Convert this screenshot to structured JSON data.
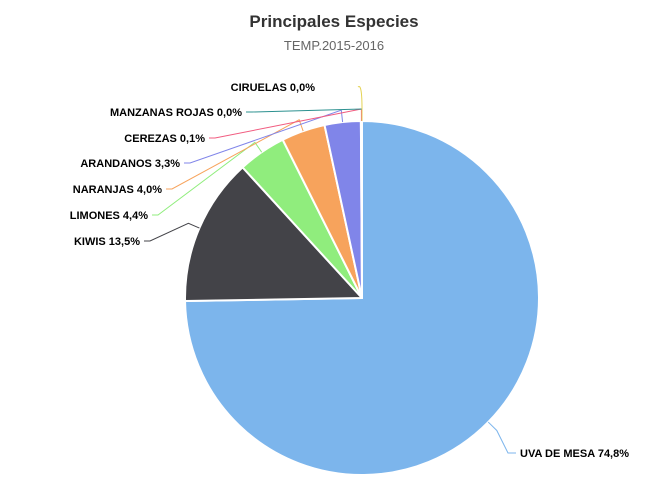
{
  "chart_data": {
    "type": "pie",
    "title": "Principales Especies",
    "subtitle": "TEMP.2015-2016",
    "slices": [
      {
        "label": "UVA DE MESA",
        "value": 74.8,
        "value_text": "74,8%",
        "color": "#7cb5ec"
      },
      {
        "label": "KIWIS",
        "value": 13.5,
        "value_text": "13,5%",
        "color": "#434348"
      },
      {
        "label": "LIMONES",
        "value": 4.4,
        "value_text": "4,4%",
        "color": "#90ed7d"
      },
      {
        "label": "NARANJAS",
        "value": 4.0,
        "value_text": "4,0%",
        "color": "#f7a35c"
      },
      {
        "label": "ARANDANOS",
        "value": 3.3,
        "value_text": "3,3%",
        "color": "#8085e9"
      },
      {
        "label": "CEREZAS",
        "value": 0.1,
        "value_text": "0,1%",
        "color": "#f15c80"
      },
      {
        "label": "MANZANAS ROJAS",
        "value": 0.0,
        "value_text": "0,0%",
        "color": "#2b908f"
      },
      {
        "label": "CIRUELAS",
        "value": 0.0,
        "value_text": "0,0%",
        "color": "#e4d354"
      }
    ]
  }
}
